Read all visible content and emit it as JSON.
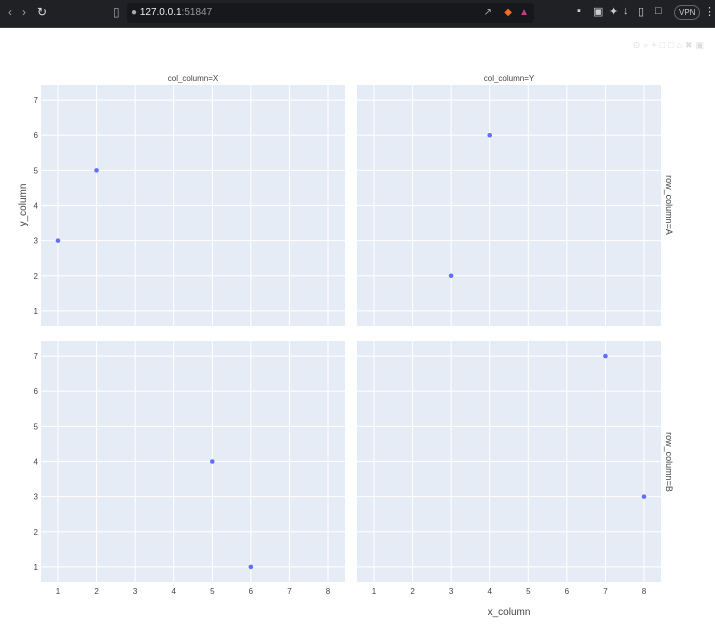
{
  "browser": {
    "url_host": "127.0.0.1",
    "url_port": ":51847",
    "vpn_label": "VPN"
  },
  "chart_data": {
    "type": "scatter",
    "facet_row_field": "row_column",
    "facet_col_field": "col_column",
    "xlabel": "x_column",
    "ylabel": "y_column",
    "xlim": [
      0.56,
      8.44
    ],
    "ylim": [
      0.57,
      7.43
    ],
    "xticks": [
      1,
      2,
      3,
      4,
      5,
      6,
      7,
      8
    ],
    "yticks": [
      1,
      2,
      3,
      4,
      5,
      6,
      7
    ],
    "grid": true,
    "marker_color": "#636efa",
    "panel_bg": "#e5ecf6",
    "col_titles": [
      "col_column=X",
      "col_column=Y"
    ],
    "row_titles": [
      "row_column=A",
      "row_column=B"
    ],
    "panels": [
      {
        "row": 0,
        "col": 0,
        "points": [
          [
            1,
            3
          ],
          [
            2,
            5
          ]
        ]
      },
      {
        "row": 0,
        "col": 1,
        "points": [
          [
            3,
            2
          ],
          [
            4,
            6
          ]
        ]
      },
      {
        "row": 1,
        "col": 0,
        "points": [
          [
            5,
            4
          ],
          [
            6,
            1
          ]
        ]
      },
      {
        "row": 1,
        "col": 1,
        "points": [
          [
            7,
            7
          ],
          [
            8,
            3
          ]
        ]
      }
    ]
  }
}
